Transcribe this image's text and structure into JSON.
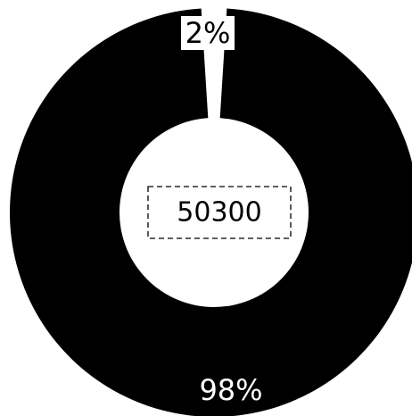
{
  "chart_data": {
    "type": "pie",
    "variant": "donut",
    "slices": [
      {
        "label": "2%",
        "value": 2,
        "color": "#ffffff"
      },
      {
        "label": "98%",
        "value": 98,
        "color": "#000000"
      }
    ],
    "center_label": "50300",
    "center_box_style": "dashed",
    "title": ""
  }
}
